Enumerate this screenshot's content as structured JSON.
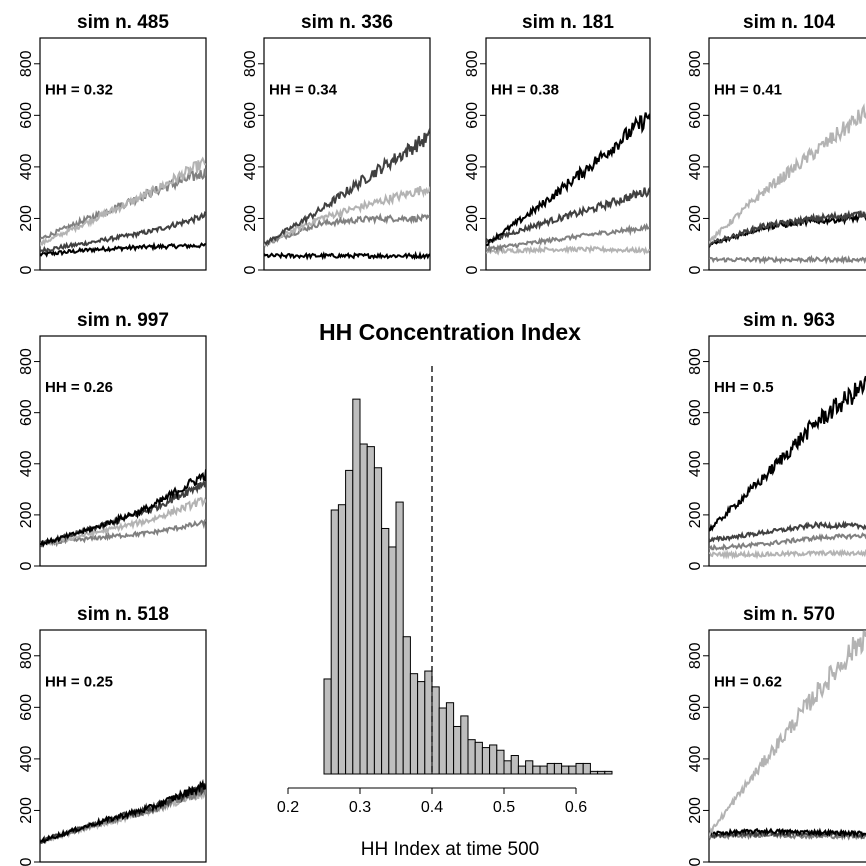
{
  "chart_data": [
    {
      "type": "line",
      "title": "sim n. 485",
      "annotation": "HH = 0.32",
      "ylim": [
        0,
        900
      ],
      "yticks": [
        0,
        200,
        400,
        600,
        800
      ],
      "xlim": [
        0,
        500
      ],
      "series": [
        {
          "color": "#b3b3b3",
          "values": [
            100,
            200,
            300,
            420
          ]
        },
        {
          "color": "#808080",
          "values": [
            120,
            210,
            300,
            380
          ]
        },
        {
          "color": "#404040",
          "values": [
            75,
            110,
            150,
            210
          ]
        },
        {
          "color": "#000000",
          "values": [
            60,
            80,
            90,
            95
          ]
        }
      ]
    },
    {
      "type": "line",
      "title": "sim n. 336",
      "annotation": "HH = 0.34",
      "ylim": [
        0,
        900
      ],
      "yticks": [
        0,
        200,
        400,
        600,
        800
      ],
      "xlim": [
        0,
        500
      ],
      "series": [
        {
          "color": "#404040",
          "values": [
            100,
            230,
            380,
            520
          ]
        },
        {
          "color": "#b3b3b3",
          "values": [
            100,
            200,
            260,
            320
          ]
        },
        {
          "color": "#808080",
          "values": [
            100,
            180,
            200,
            200
          ]
        },
        {
          "color": "#000000",
          "values": [
            55,
            55,
            55,
            55
          ]
        }
      ]
    },
    {
      "type": "line",
      "title": "sim n. 181",
      "annotation": "HH = 0.38",
      "ylim": [
        0,
        900
      ],
      "yticks": [
        0,
        200,
        400,
        600,
        800
      ],
      "xlim": [
        0,
        500
      ],
      "series": [
        {
          "color": "#000000",
          "values": [
            100,
            250,
            420,
            600
          ]
        },
        {
          "color": "#404040",
          "values": [
            110,
            180,
            240,
            310
          ]
        },
        {
          "color": "#808080",
          "values": [
            80,
            110,
            140,
            165
          ]
        },
        {
          "color": "#b3b3b3",
          "values": [
            70,
            80,
            80,
            75
          ]
        }
      ]
    },
    {
      "type": "line",
      "title": "sim n. 104",
      "annotation": "HH = 0.41",
      "ylim": [
        0,
        900
      ],
      "yticks": [
        0,
        200,
        400,
        600,
        800
      ],
      "xlim": [
        0,
        500
      ],
      "series": [
        {
          "color": "#b3b3b3",
          "values": [
            110,
            300,
            460,
            620
          ]
        },
        {
          "color": "#404040",
          "values": [
            100,
            170,
            200,
            220
          ]
        },
        {
          "color": "#000000",
          "values": [
            95,
            165,
            190,
            205
          ]
        },
        {
          "color": "#808080",
          "values": [
            40,
            40,
            40,
            40
          ]
        }
      ]
    },
    {
      "type": "line",
      "title": "sim n. 997",
      "annotation": "HH = 0.26",
      "ylim": [
        0,
        900
      ],
      "yticks": [
        0,
        200,
        400,
        600,
        800
      ],
      "xlim": [
        0,
        500
      ],
      "series": [
        {
          "color": "#000000",
          "values": [
            85,
            150,
            230,
            360
          ]
        },
        {
          "color": "#404040",
          "values": [
            85,
            150,
            220,
            330
          ]
        },
        {
          "color": "#b3b3b3",
          "values": [
            85,
            130,
            180,
            260
          ]
        },
        {
          "color": "#808080",
          "values": [
            85,
            110,
            130,
            170
          ]
        }
      ]
    },
    {
      "type": "line",
      "title": "sim n. 963",
      "annotation": "HH = 0.5",
      "ylim": [
        0,
        900
      ],
      "yticks": [
        0,
        200,
        400,
        600,
        800
      ],
      "xlim": [
        0,
        500
      ],
      "series": [
        {
          "color": "#000000",
          "values": [
            140,
            340,
            560,
            720
          ]
        },
        {
          "color": "#404040",
          "values": [
            100,
            130,
            160,
            155
          ]
        },
        {
          "color": "#808080",
          "values": [
            70,
            85,
            110,
            120
          ]
        },
        {
          "color": "#b3b3b3",
          "values": [
            45,
            45,
            50,
            50
          ]
        }
      ]
    },
    {
      "type": "line",
      "title": "sim n. 518",
      "annotation": "HH = 0.25",
      "ylim": [
        0,
        900
      ],
      "yticks": [
        0,
        200,
        400,
        600,
        800
      ],
      "xlim": [
        0,
        500
      ],
      "series": [
        {
          "color": "#000000",
          "values": [
            80,
            150,
            210,
            300
          ]
        },
        {
          "color": "#404040",
          "values": [
            80,
            150,
            210,
            290
          ]
        },
        {
          "color": "#808080",
          "values": [
            80,
            145,
            200,
            280
          ]
        },
        {
          "color": "#b3b3b3",
          "values": [
            80,
            140,
            200,
            270
          ]
        }
      ]
    },
    {
      "type": "line",
      "title": "sim n. 570",
      "annotation": "HH = 0.62",
      "ylim": [
        0,
        900
      ],
      "yticks": [
        0,
        200,
        400,
        600,
        800
      ],
      "xlim": [
        0,
        500
      ],
      "series": [
        {
          "color": "#b3b3b3",
          "values": [
            110,
            380,
            650,
            900
          ]
        },
        {
          "color": "#000000",
          "values": [
            110,
            120,
            115,
            110
          ]
        },
        {
          "color": "#404040",
          "values": [
            105,
            110,
            110,
            105
          ]
        },
        {
          "color": "#808080",
          "values": [
            100,
            105,
            100,
            100
          ]
        }
      ]
    },
    {
      "type": "bar",
      "title": "HH Concentration Index",
      "xlabel": "HH Index at time 500",
      "xlim": [
        0.2,
        0.65
      ],
      "xticks": [
        0.2,
        0.3,
        0.4,
        0.5,
        0.6
      ],
      "xtick_labels": [
        "0.2",
        "0.3",
        "0.4",
        "0.5",
        "0.6"
      ],
      "vline": 0.4,
      "bin_width": 0.01,
      "bins_start": 0.25,
      "values": [
        180,
        500,
        510,
        575,
        710,
        625,
        620,
        580,
        465,
        430,
        515,
        260,
        190,
        175,
        195,
        165,
        125,
        135,
        90,
        110,
        65,
        60,
        50,
        55,
        45,
        25,
        35,
        15,
        25,
        15,
        15,
        20,
        20,
        15,
        15,
        20,
        20,
        5,
        5,
        5
      ],
      "ylim": [
        0,
        750
      ]
    }
  ]
}
